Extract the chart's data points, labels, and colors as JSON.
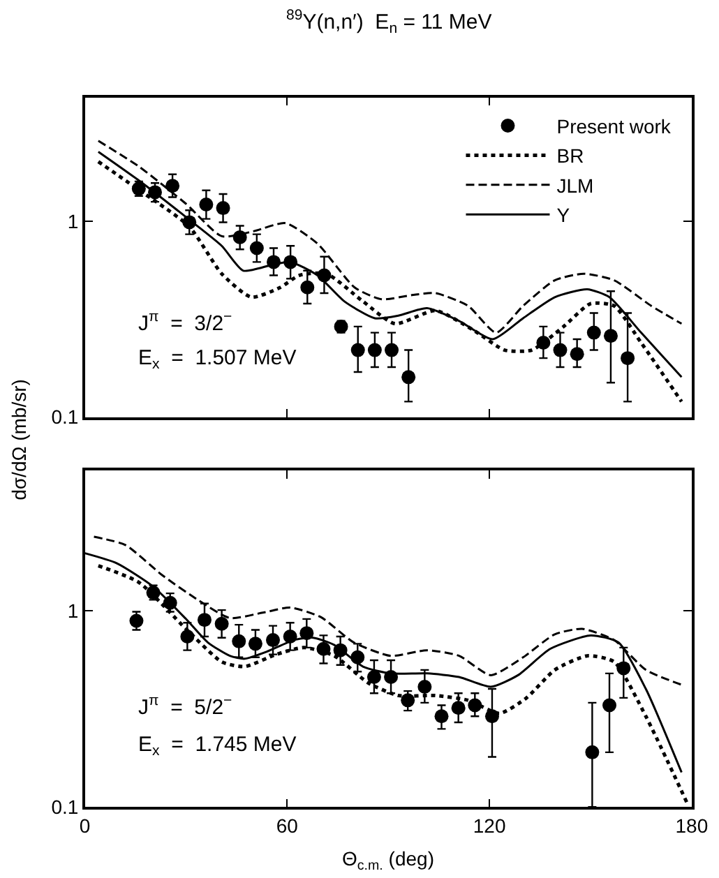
{
  "chart_data": [
    {
      "type": "line",
      "title": "$^{89}$Y(n,n′)  E$_{n}$ = 11 MeV",
      "ylabel": "dσ/dΩ (mb/sr)",
      "xlim": [
        0,
        180
      ],
      "xticks": [
        0,
        60,
        120,
        180
      ],
      "ylim": [
        0.1,
        4.3
      ],
      "yticks": [
        0.1,
        1
      ],
      "log": "y",
      "legend": "top right",
      "tick_labels": "y",
      "annotations": [
        "J$^{π}$  =  3/2$^{−}$",
        "E$_{x}$  =  1.507 MeV"
      ],
      "series": [
        {
          "name": "Present work",
          "type": "scatter",
          "marker": "circle",
          "color": "#000000",
          "x": [
            16,
            20.8,
            26,
            31,
            36,
            41,
            46,
            51,
            56,
            61,
            66,
            71,
            76,
            81,
            86,
            91,
            96,
            136,
            141,
            146,
            151,
            156,
            161
          ],
          "values": [
            1.47,
            1.41,
            1.52,
            0.99,
            1.22,
            1.17,
            0.83,
            0.73,
            0.62,
            0.62,
            0.46,
            0.53,
            0.29,
            0.22,
            0.22,
            0.22,
            0.16,
            0.24,
            0.22,
            0.21,
            0.27,
            0.26,
            0.2
          ],
          "errors": [
            [
              1.35,
              1.6
            ],
            [
              1.26,
              1.57
            ],
            [
              1.33,
              1.74
            ],
            [
              0.86,
              1.14
            ],
            [
              1.03,
              1.44
            ],
            [
              0.99,
              1.38
            ],
            [
              0.72,
              0.95
            ],
            [
              0.62,
              0.86
            ],
            [
              0.53,
              0.73
            ],
            [
              0.51,
              0.75
            ],
            [
              0.38,
              0.56
            ],
            [
              0.43,
              0.66
            ],
            [
              0.27,
              0.31
            ],
            [
              0.17,
              0.29
            ],
            [
              0.18,
              0.27
            ],
            [
              0.18,
              0.27
            ],
            [
              0.12,
              0.22
            ],
            [
              0.2,
              0.29
            ],
            [
              0.18,
              0.27
            ],
            [
              0.18,
              0.25
            ],
            [
              0.22,
              0.34
            ],
            [
              0.15,
              0.44
            ],
            [
              0.12,
              0.34
            ]
          ]
        },
        {
          "name": "BR",
          "line_style": "dotted",
          "color": "#000000",
          "x": [
            4,
            16,
            31,
            40.6,
            49.4,
            58,
            63.6,
            71.7,
            82.5,
            92,
            104,
            115,
            124.5,
            132.6,
            142,
            150,
            157,
            165,
            177
          ],
          "values": [
            2.02,
            1.45,
            0.94,
            0.54,
            0.41,
            0.46,
            0.53,
            0.54,
            0.39,
            0.3,
            0.35,
            0.28,
            0.22,
            0.22,
            0.29,
            0.38,
            0.37,
            0.24,
            0.12
          ]
        },
        {
          "name": "JLM",
          "line_style": "dashed",
          "color": "#000000",
          "x": [
            4,
            16,
            30,
            40.6,
            50,
            59.5,
            69,
            80,
            88,
            97,
            104,
            113.7,
            122,
            130,
            139.4,
            148,
            157,
            168,
            177
          ],
          "values": [
            2.58,
            1.91,
            1.23,
            0.84,
            0.89,
            0.98,
            0.77,
            0.46,
            0.4,
            0.42,
            0.43,
            0.37,
            0.27,
            0.37,
            0.5,
            0.54,
            0.5,
            0.37,
            0.3
          ]
        },
        {
          "name": "Y",
          "line_style": "solid",
          "color": "#000000",
          "x": [
            4,
            16,
            31,
            40.6,
            47,
            55.5,
            61,
            69,
            77,
            86,
            93,
            101.5,
            111,
            121,
            130,
            139.4,
            149,
            155.6,
            165,
            177
          ],
          "values": [
            2.27,
            1.62,
            1.02,
            0.75,
            0.56,
            0.6,
            0.62,
            0.53,
            0.39,
            0.32,
            0.33,
            0.36,
            0.31,
            0.25,
            0.32,
            0.41,
            0.45,
            0.41,
            0.27,
            0.16
          ]
        }
      ]
    },
    {
      "type": "line",
      "xlabel": "Θ$_{c.m.}$ (deg)",
      "xlim": [
        0,
        180
      ],
      "xticks": [
        0,
        60,
        120,
        180
      ],
      "ylim": [
        0.1,
        5.2
      ],
      "yticks": [
        0.1,
        1
      ],
      "log": "y",
      "annotations": [
        "J$^{π}$  =  5/2$^{−}$",
        "E$_{x}$  =  1.745 MeV"
      ],
      "series": [
        {
          "type": "scatter",
          "marker": "circle",
          "color": "#000000",
          "x": [
            15.3,
            20.3,
            25.3,
            30.4,
            35.5,
            40.6,
            45.7,
            50.6,
            55.8,
            60.9,
            65.8,
            70.8,
            75.8,
            80.9,
            85.8,
            90.8,
            95.8,
            100.8,
            105.8,
            110.8,
            115.7,
            120.8,
            150.5,
            155.6,
            159.8
          ],
          "values": [
            0.89,
            1.24,
            1.1,
            0.74,
            0.9,
            0.86,
            0.7,
            0.68,
            0.71,
            0.74,
            0.77,
            0.64,
            0.63,
            0.58,
            0.46,
            0.46,
            0.35,
            0.41,
            0.29,
            0.32,
            0.33,
            0.29,
            0.19,
            0.33,
            0.51
          ],
          "errors": [
            [
              0.8,
              0.99
            ],
            [
              1.14,
              1.35
            ],
            [
              0.99,
              1.23
            ],
            [
              0.63,
              0.87
            ],
            [
              0.74,
              1.09
            ],
            [
              0.73,
              1.01
            ],
            [
              0.58,
              0.85
            ],
            [
              0.58,
              0.8
            ],
            [
              0.6,
              0.84
            ],
            [
              0.63,
              0.87
            ],
            [
              0.65,
              0.91
            ],
            [
              0.54,
              0.75
            ],
            [
              0.53,
              0.74
            ],
            [
              0.49,
              0.68
            ],
            [
              0.38,
              0.56
            ],
            [
              0.38,
              0.56
            ],
            [
              0.31,
              0.39
            ],
            [
              0.34,
              0.5
            ],
            [
              0.25,
              0.33
            ],
            [
              0.27,
              0.38
            ],
            [
              0.29,
              0.38
            ],
            [
              0.18,
              0.4
            ],
            [
              0.1,
              0.34
            ],
            [
              0.19,
              0.48
            ],
            [
              0.36,
              0.65
            ]
          ]
        },
        {
          "line_style": "dotted",
          "color": "#000000",
          "x": [
            4,
            16,
            30,
            40.6,
            47.4,
            56.8,
            65,
            74,
            84,
            93,
            104,
            113.7,
            123,
            131,
            139.4,
            149,
            157,
            166.4,
            178.6
          ],
          "values": [
            1.7,
            1.4,
            0.81,
            0.55,
            0.52,
            0.6,
            0.65,
            0.59,
            0.43,
            0.37,
            0.37,
            0.35,
            0.3,
            0.36,
            0.5,
            0.59,
            0.55,
            0.29,
            0.105
          ]
        },
        {
          "line_style": "dashed",
          "color": "#000000",
          "x": [
            2.7,
            12,
            23,
            33.8,
            43,
            52.8,
            60.9,
            70,
            79.8,
            90.7,
            101.5,
            111,
            120.4,
            130,
            139.4,
            147.5,
            157,
            166.4,
            177
          ],
          "values": [
            2.39,
            2.17,
            1.52,
            1.13,
            0.92,
            0.98,
            1.04,
            0.93,
            0.69,
            0.59,
            0.63,
            0.59,
            0.47,
            0.58,
            0.76,
            0.81,
            0.71,
            0.5,
            0.42
          ]
        },
        {
          "line_style": "solid",
          "color": "#000000",
          "x": [
            0,
            9.5,
            20.3,
            30,
            36.5,
            43,
            47.4,
            54,
            62,
            67.7,
            74,
            82.5,
            90.7,
            101.5,
            111,
            120.4,
            128.5,
            138,
            150,
            158.3,
            166.4,
            177
          ],
          "values": [
            1.97,
            1.75,
            1.33,
            0.91,
            0.69,
            0.59,
            0.57,
            0.62,
            0.71,
            0.73,
            0.67,
            0.52,
            0.48,
            0.48,
            0.46,
            0.41,
            0.47,
            0.64,
            0.75,
            0.69,
            0.4,
            0.15
          ]
        }
      ]
    }
  ]
}
